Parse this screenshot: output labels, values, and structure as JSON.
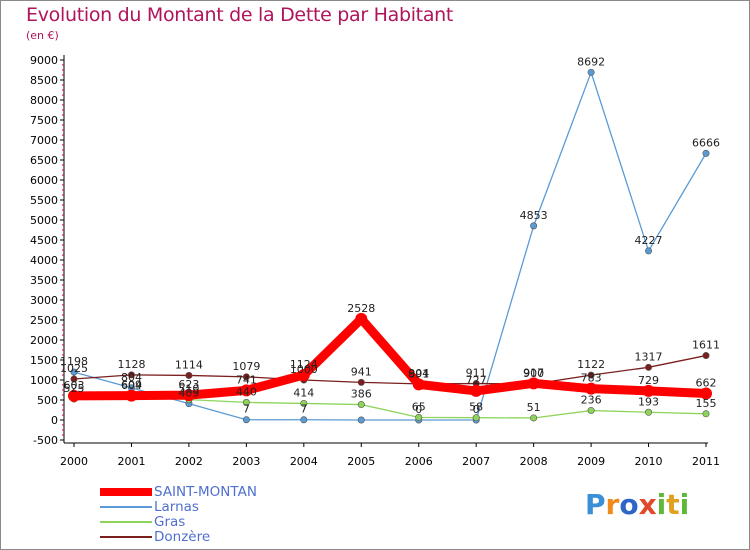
{
  "title": "Evolution du Montant de la Dette par Habitant",
  "subtitle": "(en €)",
  "logo": {
    "p1": "P",
    "p2": "r",
    "p3": "o",
    "p4": "x",
    "p5": "i",
    "p6": "t",
    "p7": "i"
  },
  "chart_data": {
    "type": "line",
    "categories": [
      "2000",
      "2001",
      "2002",
      "2003",
      "2004",
      "2005",
      "2006",
      "2007",
      "2008",
      "2009",
      "2010",
      "2011"
    ],
    "ylim": [
      -500,
      9000
    ],
    "yticks": [
      -500,
      0,
      500,
      1000,
      1500,
      2000,
      2500,
      3000,
      3500,
      4000,
      4500,
      5000,
      5500,
      6000,
      6500,
      7000,
      7500,
      8000,
      8500,
      9000
    ],
    "ytick_labels": [
      "-500",
      "0",
      "500",
      "1000",
      "1500",
      "2000",
      "2500",
      "3000",
      "3500",
      "4000",
      "4500",
      "5000",
      "5500",
      "6000",
      "6500",
      "7000",
      "7500",
      "8000",
      "8500",
      "9000"
    ],
    "legend_position": "bottom-left",
    "grid": false,
    "series": [
      {
        "name": "SAINT-MONTAN",
        "color": "#ff0000",
        "values": [
          603,
          609,
          623,
          741,
          1124,
          2528,
          891,
          727,
          917,
          783,
          729,
          662
        ],
        "labels": [
          "603",
          "609",
          "623",
          "741",
          "1124",
          "2528",
          "891",
          "727",
          "917",
          "783",
          "729",
          "662"
        ]
      },
      {
        "name": "Larnas",
        "color": "#5b9bd5",
        "values": [
          1198,
          804,
          409,
          7,
          7,
          0,
          0,
          0,
          4853,
          8692,
          4227,
          6666
        ],
        "labels": [
          "1198",
          "804",
          "409",
          "7",
          "7",
          "",
          "0",
          "0",
          "4853",
          "8692",
          "4227",
          "6666"
        ]
      },
      {
        "name": "Gras",
        "color": "#8ed45a",
        "values": [
          525,
          604,
          510,
          440,
          414,
          386,
          65,
          58,
          51,
          236,
          193,
          155
        ],
        "labels": [
          "525",
          "604",
          "510",
          "440",
          "414",
          "386",
          "65",
          "58",
          "51",
          "236",
          "193",
          "155"
        ]
      },
      {
        "name": "Donzère",
        "color": "#7a1e1e",
        "values": [
          1025,
          1128,
          1114,
          1079,
          1000,
          941,
          904,
          911,
          900,
          1122,
          1317,
          1611
        ],
        "labels": [
          "1025",
          "1128",
          "1114",
          "1079",
          "1000",
          "941",
          "904",
          "911",
          "900",
          "1122",
          "1317",
          "1611"
        ]
      }
    ]
  }
}
